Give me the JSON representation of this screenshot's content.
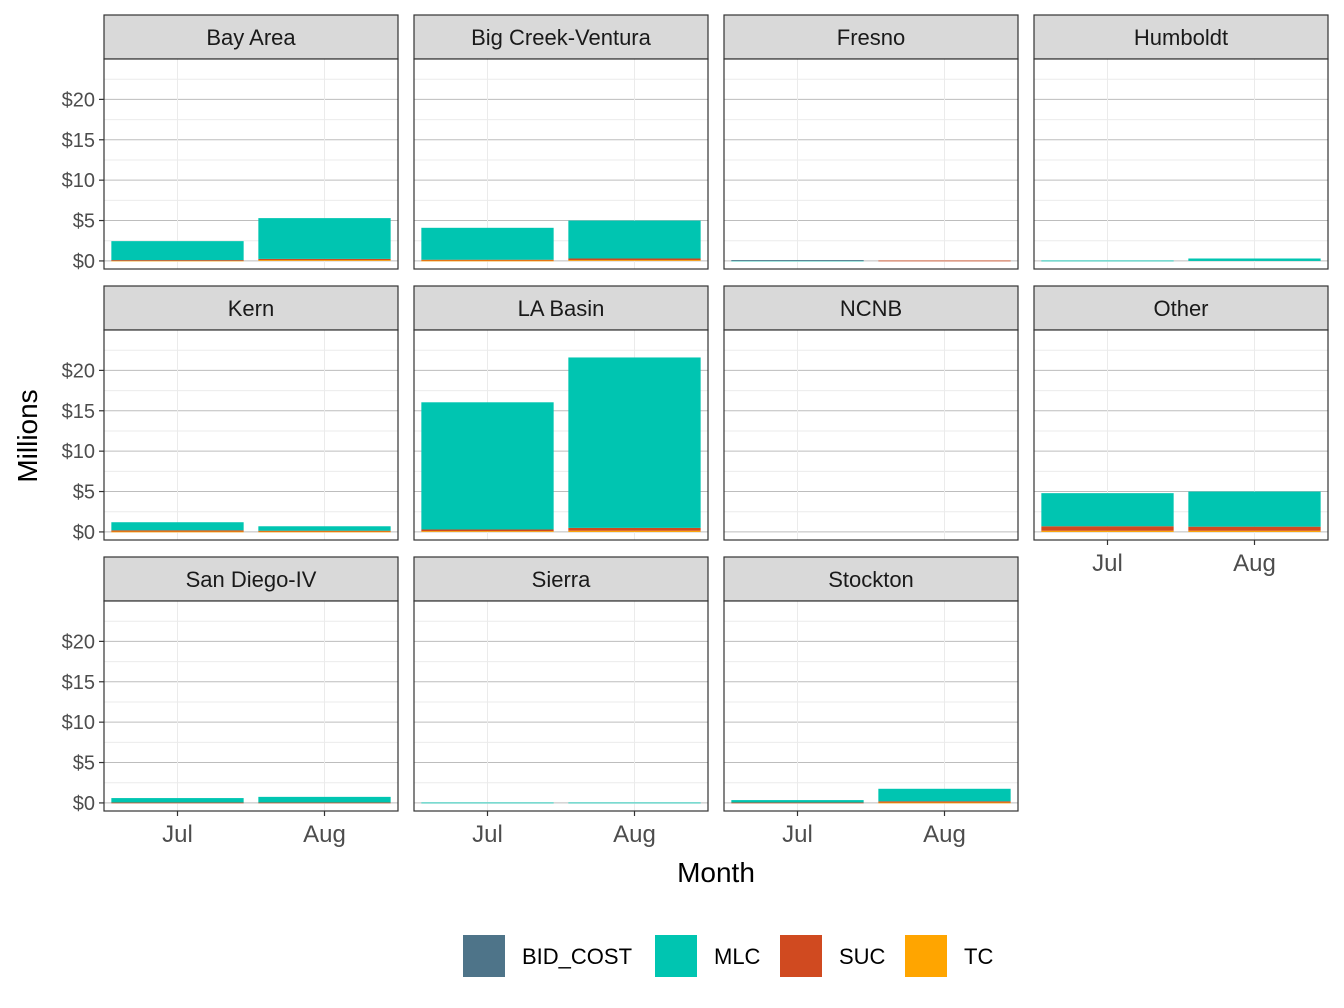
{
  "chart_data": {
    "type": "bar",
    "stacked": true,
    "facet": "region",
    "xlabel": "Month",
    "ylabel": "Millions",
    "ylim": [
      -1,
      25
    ],
    "yticks": [
      0,
      5,
      10,
      15,
      20
    ],
    "ytick_labels": [
      "$0",
      "$5",
      "$10",
      "$15",
      "$20"
    ],
    "categories": [
      "Jul",
      "Aug"
    ],
    "legend_position": "bottom",
    "grid": true,
    "series": [
      {
        "name": "BID_COST",
        "color": "#4E7489"
      },
      {
        "name": "MLC",
        "color": "#00C5B1"
      },
      {
        "name": "SUC",
        "color": "#D04A20"
      },
      {
        "name": "TC",
        "color": "#FFA500"
      }
    ],
    "panels": [
      {
        "name": "Bay Area",
        "values": {
          "Jul": {
            "BID_COST": 0,
            "MLC": 2.35,
            "SUC": 0.05,
            "TC": 0.05
          },
          "Aug": {
            "BID_COST": 0,
            "MLC": 5.05,
            "SUC": 0.15,
            "TC": 0.1
          }
        }
      },
      {
        "name": "Big Creek-Ventura",
        "values": {
          "Jul": {
            "BID_COST": 0,
            "MLC": 3.95,
            "SUC": 0.1,
            "TC": 0.05
          },
          "Aug": {
            "BID_COST": 0,
            "MLC": 4.7,
            "SUC": 0.2,
            "TC": 0.1
          }
        }
      },
      {
        "name": "Fresno",
        "values": {
          "Jul": {
            "BID_COST": 0.05,
            "MLC": 0.05,
            "SUC": 0,
            "TC": 0
          },
          "Aug": {
            "BID_COST": 0,
            "MLC": 0,
            "SUC": 0.05,
            "TC": 0
          }
        }
      },
      {
        "name": "Humboldt",
        "values": {
          "Jul": {
            "BID_COST": 0,
            "MLC": 0.05,
            "SUC": 0,
            "TC": 0
          },
          "Aug": {
            "BID_COST": 0,
            "MLC": 0.3,
            "SUC": 0,
            "TC": 0
          }
        }
      },
      {
        "name": "Kern",
        "values": {
          "Jul": {
            "BID_COST": 0,
            "MLC": 1.0,
            "SUC": 0.15,
            "TC": 0.05
          },
          "Aug": {
            "BID_COST": 0,
            "MLC": 0.55,
            "SUC": 0.1,
            "TC": 0.05
          }
        }
      },
      {
        "name": "LA Basin",
        "values": {
          "Jul": {
            "BID_COST": 0,
            "MLC": 15.75,
            "SUC": 0.2,
            "TC": 0.1
          },
          "Aug": {
            "BID_COST": 0,
            "MLC": 21.1,
            "SUC": 0.35,
            "TC": 0.15
          }
        }
      },
      {
        "name": "NCNB",
        "values": {
          "Jul": {
            "BID_COST": 0,
            "MLC": 0,
            "SUC": 0,
            "TC": 0
          },
          "Aug": {
            "BID_COST": 0,
            "MLC": 0,
            "SUC": 0,
            "TC": 0
          }
        }
      },
      {
        "name": "Other",
        "values": {
          "Jul": {
            "BID_COST": 0,
            "MLC": 4.1,
            "SUC": 0.55,
            "TC": 0.15
          },
          "Aug": {
            "BID_COST": 0,
            "MLC": 4.35,
            "SUC": 0.5,
            "TC": 0.15
          }
        }
      },
      {
        "name": "San Diego-IV",
        "values": {
          "Jul": {
            "BID_COST": 0,
            "MLC": 0.55,
            "SUC": 0.05,
            "TC": 0
          },
          "Aug": {
            "BID_COST": 0,
            "MLC": 0.7,
            "SUC": 0.05,
            "TC": 0
          }
        }
      },
      {
        "name": "Sierra",
        "values": {
          "Jul": {
            "BID_COST": 0,
            "MLC": 0.05,
            "SUC": 0,
            "TC": 0
          },
          "Aug": {
            "BID_COST": 0,
            "MLC": 0.05,
            "SUC": 0,
            "TC": 0
          }
        }
      },
      {
        "name": "Stockton",
        "values": {
          "Jul": {
            "BID_COST": 0,
            "MLC": 0.3,
            "SUC": 0.05,
            "TC": 0
          },
          "Aug": {
            "BID_COST": 0,
            "MLC": 1.55,
            "SUC": 0.15,
            "TC": 0.05
          }
        }
      }
    ]
  }
}
